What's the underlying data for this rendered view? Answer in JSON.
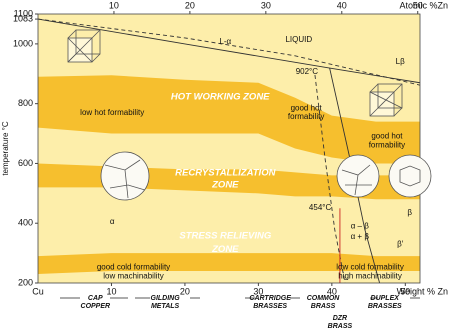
{
  "chart_data": {
    "type": "phase",
    "xlabel": "Weight % Zn",
    "x2label": "Atomic %Zn",
    "ylabel": "temperature °C",
    "x_origin_label": "Cu",
    "xlim": [
      0,
      52
    ],
    "xticks": [
      10,
      20,
      30,
      40,
      50
    ],
    "x2lim": [
      0,
      50.3
    ],
    "x2ticks": [
      10,
      20,
      30,
      40,
      50
    ],
    "ylim": [
      200,
      1100
    ],
    "yticks": [
      200,
      400,
      600,
      800,
      1000,
      1083,
      1100
    ],
    "background": "#fdeeaa",
    "zones": [
      {
        "color": "#f6bf2e",
        "x": [
          0,
          10,
          20,
          30,
          35,
          40,
          46,
          52
        ],
        "upper": [
          890,
          895,
          880,
          870,
          820,
          760,
          740,
          740
        ],
        "lower": [
          720,
          700,
          700,
          700,
          650,
          620,
          600,
          600
        ]
      },
      {
        "color": "#f6bf2e",
        "x": [
          0,
          10,
          20,
          30,
          35,
          40,
          46,
          52
        ],
        "upper": [
          600,
          590,
          580,
          580,
          570,
          560,
          560,
          560
        ],
        "lower": [
          520,
          520,
          510,
          500,
          490,
          490,
          480,
          480
        ]
      },
      {
        "color": "#f6bf2e",
        "x": [
          0,
          10,
          20,
          30,
          35,
          40,
          46,
          52
        ],
        "upper": [
          290,
          300,
          300,
          300,
          300,
          300,
          290,
          290
        ],
        "lower": [
          230,
          240,
          240,
          240,
          240,
          240,
          240,
          240
        ]
      }
    ],
    "lines": [
      {
        "style": "dashed",
        "color": "#333333",
        "x": [
          0,
          20,
          35,
          52
        ],
        "y": [
          1083,
          1020,
          960,
          862
        ]
      },
      {
        "style": "solid",
        "color": "#333333",
        "x": [
          0,
          20,
          39.7,
          52
        ],
        "y": [
          1083,
          1000,
          919,
          870
        ]
      },
      {
        "style": "dashed",
        "color": "#333333",
        "x": [
          37.7,
          39.1,
          40.4,
          41.8
        ],
        "y": [
          896,
          612,
          378,
          200
        ]
      },
      {
        "style": "solid",
        "color": "#333333",
        "x": [
          39.7,
          42.5,
          44.5,
          46.5
        ],
        "y": [
          919,
          612,
          378,
          200
        ]
      },
      {
        "style": "solid",
        "color": "#cc2222",
        "x": [
          41.1,
          41.1
        ],
        "y": [
          450,
          200
        ]
      }
    ],
    "annotations": [
      {
        "text": "LIQUID",
        "x": 35.5,
        "y": 1013,
        "style": "plain"
      },
      {
        "text": "L-α",
        "x": 25.5,
        "y": 1006,
        "style": "plain"
      },
      {
        "text": "Lβ",
        "x": 49.3,
        "y": 939,
        "style": "plain"
      },
      {
        "text": "902°C",
        "x": 36.6,
        "y": 906,
        "style": "plain"
      },
      {
        "text": "HOT WORKING ZONE",
        "x": 24.8,
        "y": 822,
        "style": "zone"
      },
      {
        "text": "low hot formability",
        "x": 10.1,
        "y": 769,
        "style": "plain"
      },
      {
        "text": "good hot",
        "x": 36.5,
        "y": 785,
        "style": "plain"
      },
      {
        "text": "formability",
        "x": 36.5,
        "y": 755,
        "style": "plain"
      },
      {
        "text": "good hot",
        "x": 47.5,
        "y": 690,
        "style": "plain"
      },
      {
        "text": "formability",
        "x": 47.5,
        "y": 660,
        "style": "plain"
      },
      {
        "text": "RECRYSTALLIZATION",
        "x": 25.5,
        "y": 568,
        "style": "zone"
      },
      {
        "text": "ZONE",
        "x": 25.5,
        "y": 528,
        "style": "zone"
      },
      {
        "text": "α",
        "x": 10.1,
        "y": 404,
        "style": "plain"
      },
      {
        "text": "454°C",
        "x": 38.4,
        "y": 451,
        "style": "plain"
      },
      {
        "text": "α – β",
        "x": 43.8,
        "y": 390,
        "style": "plain"
      },
      {
        "text": "α + β",
        "x": 43.8,
        "y": 355,
        "style": "plain"
      },
      {
        "text": "β",
        "x": 50.6,
        "y": 434,
        "style": "plain"
      },
      {
        "text": "β′",
        "x": 49.3,
        "y": 330,
        "style": "plain"
      },
      {
        "text": "STRESS RELIEVING",
        "x": 25.5,
        "y": 357,
        "style": "zone"
      },
      {
        "text": "ZONE",
        "x": 25.5,
        "y": 312,
        "style": "zone"
      },
      {
        "text": "good cold formability",
        "x": 13,
        "y": 252,
        "style": "plain"
      },
      {
        "text": "low machinability",
        "x": 13,
        "y": 222,
        "style": "plain"
      },
      {
        "text": "low cold formability",
        "x": 45.2,
        "y": 252,
        "style": "plain"
      },
      {
        "text": "high machinability",
        "x": 45.2,
        "y": 222,
        "style": "plain"
      }
    ],
    "alloy_labels": [
      {
        "lines": [
          "CAP",
          "COPPER"
        ],
        "x": 7.8,
        "row": 0
      },
      {
        "lines": [
          "GILDING",
          "METALS"
        ],
        "x": 17.3,
        "row": 0
      },
      {
        "lines": [
          "CARTRIDGE",
          "BRASSES"
        ],
        "x": 31.6,
        "row": 0
      },
      {
        "lines": [
          "COMMON",
          "BRASS"
        ],
        "x": 38.8,
        "row": 0
      },
      {
        "lines": [
          "DUPLEX",
          "BRASSES"
        ],
        "x": 47.2,
        "row": 0
      },
      {
        "lines": [
          "DZR",
          "BRASS"
        ],
        "x": 41.1,
        "row": 1
      }
    ]
  }
}
